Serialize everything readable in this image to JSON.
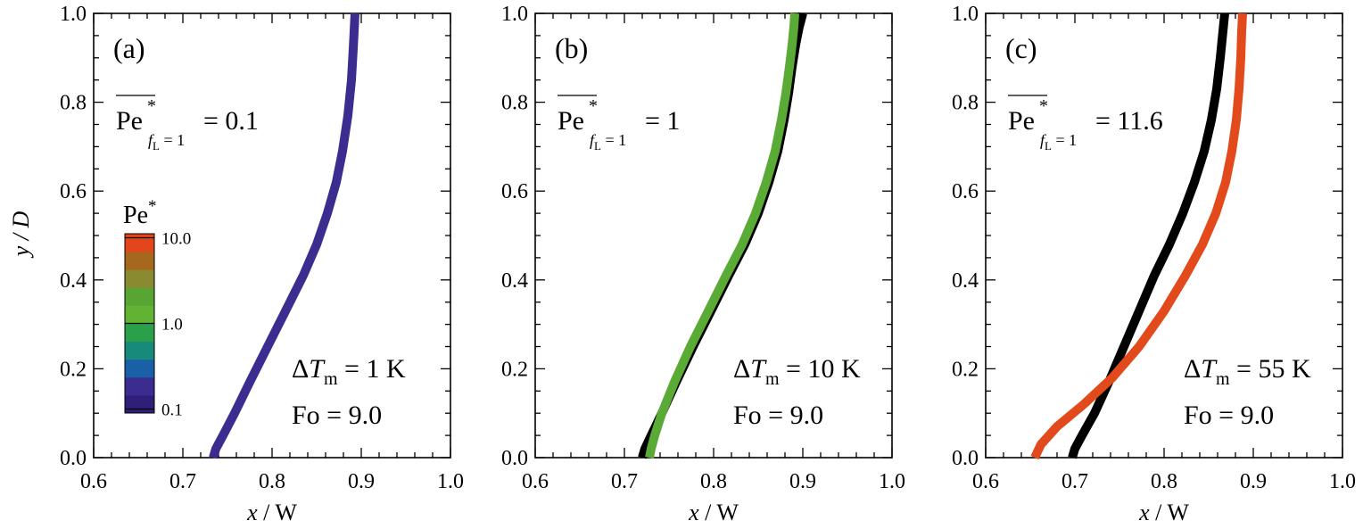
{
  "chart_data": {
    "type": "line",
    "ylabel": "y / D",
    "colorbar": {
      "title": "Pe*",
      "tick_labels": [
        "10.0",
        "1.0",
        "0.1"
      ],
      "tick_values": [
        10,
        1,
        0.1
      ],
      "levels": 10,
      "colors": [
        "#2f1f78",
        "#3b2d8f",
        "#1a60a8",
        "#178a7c",
        "#2aa04a",
        "#62b234",
        "#58a534",
        "#8a8a30",
        "#a6681f",
        "#e2461a"
      ]
    },
    "panels": [
      {
        "label": "(a)",
        "pe_prefix": "Pe",
        "pe_sub": "fL = 1",
        "pe_value": "= 0.1",
        "dT_prefix": "ΔT",
        "dT_sub": "m",
        "dT_value": "= 1 K",
        "fo_text": "Fo = 9.0",
        "xlabel": "x / W",
        "xlim": [
          0.6,
          1.0
        ],
        "ylim": [
          0.0,
          1.0
        ],
        "x_ticks": [
          "0.6",
          "0.7",
          "0.8",
          "0.9",
          "1.0"
        ],
        "y_ticks": [
          "0.0",
          "0.2",
          "0.4",
          "0.6",
          "0.8",
          "1.0"
        ],
        "series": [
          {
            "name": "interface",
            "color": "#3b2d8f",
            "x": [
              0.734,
              0.737,
              0.745,
              0.758,
              0.775,
              0.795,
              0.815,
              0.835,
              0.85,
              0.862,
              0.872,
              0.879,
              0.885,
              0.889,
              0.891,
              0.893
            ],
            "y": [
              0.0,
              0.02,
              0.05,
              0.1,
              0.17,
              0.25,
              0.33,
              0.41,
              0.48,
              0.55,
              0.62,
              0.69,
              0.77,
              0.85,
              0.92,
              1.0
            ]
          }
        ]
      },
      {
        "label": "(b)",
        "pe_prefix": "Pe",
        "pe_sub": "fL = 1",
        "pe_value": "= 1",
        "dT_prefix": "ΔT",
        "dT_sub": "m",
        "dT_value": "= 10 K",
        "fo_text": "Fo = 9.0",
        "xlabel": "x / W",
        "xlim": [
          0.6,
          1.0
        ],
        "ylim": [
          0.0,
          1.0
        ],
        "x_ticks": [
          "0.6",
          "0.7",
          "0.8",
          "0.9",
          "1.0"
        ],
        "y_ticks": [
          "0.0",
          "0.2",
          "0.4",
          "0.6",
          "0.8",
          "1.0"
        ],
        "series": [
          {
            "name": "reference",
            "color": "#000000",
            "x": [
              0.72,
              0.723,
              0.73,
              0.742,
              0.758,
              0.777,
              0.797,
              0.817,
              0.835,
              0.85,
              0.862,
              0.872,
              0.879,
              0.884,
              0.888,
              0.892,
              0.896,
              0.9
            ],
            "y": [
              0.0,
              0.02,
              0.05,
              0.1,
              0.17,
              0.25,
              0.33,
              0.41,
              0.48,
              0.55,
              0.62,
              0.69,
              0.76,
              0.82,
              0.88,
              0.93,
              0.97,
              1.0
            ]
          },
          {
            "name": "interface",
            "color": "#5aaa36",
            "x": [
              0.728,
              0.73,
              0.734,
              0.742,
              0.756,
              0.774,
              0.794,
              0.814,
              0.832,
              0.847,
              0.859,
              0.869,
              0.876,
              0.881,
              0.885,
              0.888,
              0.89,
              0.891
            ],
            "y": [
              0.0,
              0.02,
              0.05,
              0.1,
              0.17,
              0.25,
              0.33,
              0.41,
              0.48,
              0.55,
              0.62,
              0.69,
              0.76,
              0.82,
              0.88,
              0.93,
              0.97,
              1.0
            ]
          }
        ]
      },
      {
        "label": "(c)",
        "pe_prefix": "Pe",
        "pe_sub": "fL = 1",
        "pe_value": "= 11.6",
        "dT_prefix": "ΔT",
        "dT_sub": "m",
        "dT_value": "= 55 K",
        "fo_text": "Fo = 9.0",
        "xlabel": "x / W",
        "xlim": [
          0.6,
          1.0
        ],
        "ylim": [
          0.0,
          1.0
        ],
        "x_ticks": [
          "0.6",
          "0.7",
          "0.8",
          "0.9",
          "1.0"
        ],
        "y_ticks": [
          "0.0",
          "0.2",
          "0.4",
          "0.6",
          "0.8",
          "1.0"
        ],
        "series": [
          {
            "name": "reference",
            "color": "#000000",
            "x": [
              0.697,
              0.7,
              0.708,
              0.722,
              0.738,
              0.755,
              0.772,
              0.789,
              0.806,
              0.821,
              0.834,
              0.845,
              0.853,
              0.859,
              0.863,
              0.866,
              0.868
            ],
            "y": [
              0.0,
              0.02,
              0.05,
              0.1,
              0.17,
              0.25,
              0.33,
              0.41,
              0.48,
              0.55,
              0.62,
              0.69,
              0.76,
              0.83,
              0.9,
              0.96,
              1.0
            ]
          },
          {
            "name": "interface",
            "color": "#e24a1c",
            "x": [
              0.655,
              0.662,
              0.68,
              0.71,
              0.742,
              0.772,
              0.8,
              0.824,
              0.843,
              0.858,
              0.869,
              0.876,
              0.881,
              0.884,
              0.886,
              0.887,
              0.888
            ],
            "y": [
              0.0,
              0.03,
              0.07,
              0.12,
              0.18,
              0.25,
              0.33,
              0.41,
              0.48,
              0.55,
              0.62,
              0.69,
              0.76,
              0.83,
              0.9,
              0.96,
              1.0
            ]
          }
        ]
      }
    ]
  }
}
